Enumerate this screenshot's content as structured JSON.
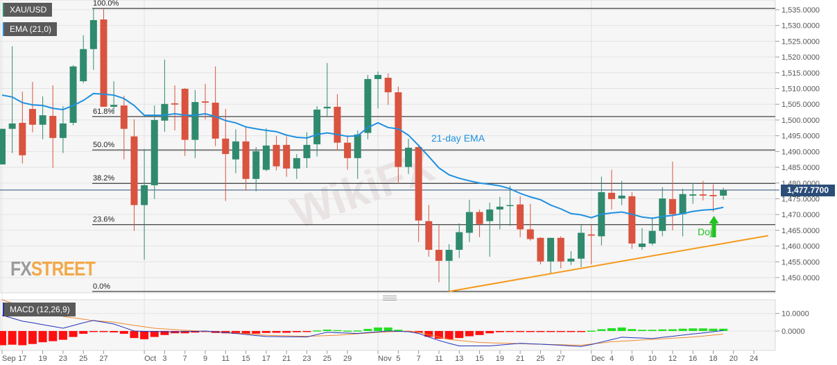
{
  "legend": {
    "symbol": "XAU/USD",
    "ema": "EMA (21,0)",
    "macd": "MACD (12,26,9)"
  },
  "logo": {
    "fx": "FX",
    "street": "STREET"
  },
  "watermark": "WikiFX",
  "colors": {
    "up": "#2f8a6e",
    "down": "#d9533f",
    "ema": "#1e90e0",
    "trend": "#f59a1b",
    "price_tag": "#2b4d78",
    "macd_line": "#2233bb",
    "signal_line": "#f08a30",
    "hist_pos": "#22e022",
    "hist_neg": "#ff1010",
    "doji": "#22c322"
  },
  "chart_data": [
    {
      "type": "candlestick",
      "title": "XAU/USD",
      "ylim": [
        1445,
        1537
      ],
      "yticks": [
        "1,535.0000",
        "1,530.0000",
        "1,525.0000",
        "1,520.0000",
        "1,515.0000",
        "1,510.0000",
        "1,505.0000",
        "1,500.0000",
        "1,495.0000",
        "1,490.0000",
        "1,485.0000",
        "1,480.0000",
        "1,475.0000",
        "1,470.0000",
        "1,465.0000",
        "1,460.0000",
        "1,455.0000",
        "1,450.0000"
      ],
      "ytick_values": [
        1535,
        1530,
        1525,
        1520,
        1515,
        1510,
        1505,
        1500,
        1495,
        1490,
        1485,
        1480,
        1475,
        1470,
        1465,
        1460,
        1455,
        1450
      ],
      "xticks": [
        {
          "label": "Sep",
          "candle": 0
        },
        {
          "label": "17",
          "candle": 2
        },
        {
          "label": "19",
          "candle": 4
        },
        {
          "label": "23",
          "candle": 6
        },
        {
          "label": "25",
          "candle": 8
        },
        {
          "label": "27",
          "candle": 10
        },
        {
          "label": "Oct",
          "candle": 14
        },
        {
          "label": "3",
          "candle": 16
        },
        {
          "label": "7",
          "candle": 18
        },
        {
          "label": "9",
          "candle": 20
        },
        {
          "label": "11",
          "candle": 22
        },
        {
          "label": "15",
          "candle": 24
        },
        {
          "label": "17",
          "candle": 26
        },
        {
          "label": "21",
          "candle": 28
        },
        {
          "label": "23",
          "candle": 30
        },
        {
          "label": "25",
          "candle": 32
        },
        {
          "label": "29",
          "candle": 34
        },
        {
          "label": "Nov",
          "candle": 37
        },
        {
          "label": "5",
          "candle": 39
        },
        {
          "label": "7",
          "candle": 41
        },
        {
          "label": "11",
          "candle": 43
        },
        {
          "label": "13",
          "candle": 45
        },
        {
          "label": "15",
          "candle": 47
        },
        {
          "label": "19",
          "candle": 49
        },
        {
          "label": "21",
          "candle": 51
        },
        {
          "label": "25",
          "candle": 53
        },
        {
          "label": "27",
          "candle": 55
        },
        {
          "label": "Dec",
          "candle": 58
        },
        {
          "label": "4",
          "candle": 60
        },
        {
          "label": "6",
          "candle": 62
        },
        {
          "label": "10",
          "candle": 64
        },
        {
          "label": "12",
          "candle": 66
        },
        {
          "label": "16",
          "candle": 68
        },
        {
          "label": "18",
          "candle": 70
        },
        {
          "label": "20",
          "candle": 72
        },
        {
          "label": "24",
          "candle": 74
        }
      ],
      "ohlc": [
        [
          1485.9,
          1497.2,
          1485.9,
          1497.2
        ],
        [
          1497.2,
          1523.4,
          1489.5,
          1498.9
        ],
        [
          1499.1,
          1509.0,
          1486.2,
          1488.8
        ],
        [
          1503.5,
          1512.1,
          1496.1,
          1498.5
        ],
        [
          1498.5,
          1507.5,
          1493.9,
          1501.5
        ],
        [
          1501.3,
          1511.0,
          1484.8,
          1494.3
        ],
        [
          1494.3,
          1504.4,
          1489.5,
          1498.9
        ],
        [
          1499.1,
          1517.4,
          1498.3,
          1517.0
        ],
        [
          1512.3,
          1526.9,
          1511.7,
          1522.5
        ],
        [
          1522.5,
          1535.4,
          1515.9,
          1531.7
        ],
        [
          1531.9,
          1535.2,
          1504.2,
          1504.2
        ],
        [
          1504.2,
          1512.3,
          1502.4,
          1504.8
        ],
        [
          1504.6,
          1507.7,
          1487.5,
          1497.2
        ],
        [
          1494.8,
          1500.2,
          1464.8,
          1473.0
        ],
        [
          1473.0,
          1490.8,
          1455.7,
          1479.3
        ],
        [
          1479.3,
          1504.6,
          1474.9,
          1500.0
        ],
        [
          1499.8,
          1519.2,
          1496.3,
          1505.1
        ],
        [
          1505.3,
          1511.0,
          1496.7,
          1504.9
        ],
        [
          1509.9,
          1510.1,
          1488.6,
          1493.7
        ],
        [
          1493.7,
          1509.5,
          1487.9,
          1505.7
        ],
        [
          1505.9,
          1511.5,
          1500.2,
          1505.5
        ],
        [
          1505.5,
          1517.0,
          1491.7,
          1494.1
        ],
        [
          1494.1,
          1503.5,
          1474.3,
          1489.2
        ],
        [
          1487.5,
          1497.0,
          1483.1,
          1493.2
        ],
        [
          1493.2,
          1497.8,
          1477.6,
          1481.3
        ],
        [
          1481.3,
          1491.4,
          1477.4,
          1490.1
        ],
        [
          1484.2,
          1497.4,
          1483.7,
          1491.9
        ],
        [
          1492.1,
          1495.0,
          1484.0,
          1485.3
        ],
        [
          1492.1,
          1494.8,
          1482.0,
          1484.6
        ],
        [
          1484.6,
          1489.2,
          1481.3,
          1487.9
        ],
        [
          1487.9,
          1496.1,
          1484.8,
          1492.1
        ],
        [
          1492.3,
          1504.4,
          1488.4,
          1503.3
        ],
        [
          1503.7,
          1518.1,
          1501.1,
          1504.2
        ],
        [
          1504.2,
          1508.2,
          1490.3,
          1492.8
        ],
        [
          1492.8,
          1495.2,
          1484.2,
          1487.9
        ],
        [
          1487.9,
          1496.7,
          1481.3,
          1495.4
        ],
        [
          1495.9,
          1514.3,
          1493.9,
          1513.0
        ],
        [
          1513.0,
          1515.4,
          1503.7,
          1514.3
        ],
        [
          1513.4,
          1514.8,
          1504.8,
          1508.8
        ],
        [
          1508.8,
          1510.6,
          1479.8,
          1485.1
        ],
        [
          1485.1,
          1494.1,
          1482.9,
          1491.2
        ],
        [
          1491.4,
          1492.1,
          1461.3,
          1468.1
        ],
        [
          1467.9,
          1473.0,
          1456.6,
          1458.8
        ],
        [
          1458.8,
          1466.6,
          1448.5,
          1455.3
        ],
        [
          1455.3,
          1460.6,
          1445.6,
          1458.8
        ],
        [
          1458.8,
          1467.2,
          1456.2,
          1464.4
        ],
        [
          1464.2,
          1474.7,
          1461.3,
          1470.8
        ],
        [
          1470.8,
          1471.6,
          1462.8,
          1467.0
        ],
        [
          1467.9,
          1473.8,
          1456.6,
          1471.6
        ],
        [
          1471.6,
          1475.6,
          1465.3,
          1472.5
        ],
        [
          1472.8,
          1479.1,
          1466.4,
          1473.0
        ],
        [
          1473.2,
          1475.8,
          1462.8,
          1465.3
        ],
        [
          1465.3,
          1473.4,
          1461.7,
          1462.2
        ],
        [
          1462.6,
          1462.8,
          1454.2,
          1455.1
        ],
        [
          1455.1,
          1462.6,
          1451.1,
          1462.6
        ],
        [
          1462.6,
          1463.1,
          1452.9,
          1455.1
        ],
        [
          1455.1,
          1458.4,
          1454.0,
          1456.0
        ],
        [
          1456.0,
          1466.6,
          1453.3,
          1464.2
        ],
        [
          1463.7,
          1466.6,
          1454.2,
          1463.3
        ],
        [
          1463.1,
          1482.0,
          1460.2,
          1477.1
        ],
        [
          1476.9,
          1484.2,
          1471.6,
          1474.9
        ],
        [
          1475.1,
          1480.7,
          1473.0,
          1476.0
        ],
        [
          1475.8,
          1477.1,
          1459.1,
          1460.8
        ],
        [
          1459.7,
          1465.7,
          1458.8,
          1460.8
        ],
        [
          1460.8,
          1469.2,
          1460.2,
          1464.8
        ],
        [
          1464.8,
          1478.7,
          1463.1,
          1475.1
        ],
        [
          1474.9,
          1486.8,
          1465.0,
          1470.1
        ],
        [
          1470.1,
          1478.2,
          1463.1,
          1476.5
        ],
        [
          1476.0,
          1480.0,
          1473.4,
          1476.4
        ],
        [
          1476.4,
          1480.7,
          1474.5,
          1476.0
        ],
        [
          1476.2,
          1479.6,
          1470.8,
          1475.8
        ],
        [
          1476.0,
          1478.5,
          1474.7,
          1477.77
        ]
      ],
      "ema21": [
        1507.9,
        1507.3,
        1505.5,
        1504.8,
        1504.6,
        1503.7,
        1503.3,
        1504.6,
        1506.2,
        1508.4,
        1508.2,
        1507.9,
        1506.8,
        1504.6,
        1501.5,
        1501.5,
        1501.5,
        1502.0,
        1501.5,
        1501.5,
        1502.0,
        1501.1,
        1499.8,
        1499.1,
        1497.8,
        1497.2,
        1496.7,
        1496.3,
        1495.2,
        1494.5,
        1494.3,
        1495.4,
        1495.9,
        1495.4,
        1494.8,
        1495.0,
        1497.6,
        1499.1,
        1497.6,
        1497.2,
        1495.2,
        1491.9,
        1488.4,
        1484.8,
        1482.6,
        1481.5,
        1480.7,
        1480.0,
        1479.6,
        1479.1,
        1478.2,
        1476.7,
        1475.6,
        1474.7,
        1473.0,
        1471.8,
        1470.3,
        1469.9,
        1469.0,
        1470.1,
        1470.5,
        1470.8,
        1470.1,
        1469.2,
        1468.8,
        1469.4,
        1469.7,
        1470.3,
        1471.0,
        1471.4,
        1471.6,
        1472.3
      ],
      "fibonacci": [
        {
          "label": "100.0%",
          "value": 1535.4
        },
        {
          "label": "61.8%",
          "value": 1501.1
        },
        {
          "label": "50.0%",
          "value": 1490.5
        },
        {
          "label": "38.2%",
          "value": 1479.9
        },
        {
          "label": "23.6%",
          "value": 1466.8
        },
        {
          "label": "0.0%",
          "value": 1445.6
        }
      ],
      "trendline": {
        "from": {
          "candle": 44,
          "value": 1445.6
        },
        "to": {
          "candle": 75.4,
          "value": 1463.3
        }
      },
      "last_price": 1477.77,
      "last_price_label": "1,477.7700",
      "annotations": {
        "ema_label": "21-day EMA",
        "doji_label": "Doji",
        "doji_candle": 70
      }
    },
    {
      "type": "macd",
      "title": "MACD (12,26,9)",
      "yticks": [
        "10.0000",
        "0.0000"
      ],
      "ytick_values": [
        10,
        0
      ],
      "histogram": [
        -8.1,
        -7.8,
        -8.1,
        -7.4,
        -6.4,
        -5.8,
        -5.0,
        -3.4,
        -1.6,
        -0.3,
        -0.6,
        -0.8,
        -1.6,
        -4.0,
        -4.7,
        -3.4,
        -2.3,
        -1.3,
        -1.3,
        -0.9,
        -0.5,
        -1.1,
        -1.3,
        -1.6,
        -1.6,
        -1.5,
        -1.1,
        -1.0,
        -1.0,
        -0.7,
        -0.5,
        0.3,
        0.8,
        0.5,
        0.2,
        0.3,
        1.2,
        2.0,
        2.0,
        0.7,
        -0.3,
        -1.0,
        -3.3,
        -4.4,
        -4.7,
        -4.0,
        -3.0,
        -2.3,
        -1.3,
        -0.7,
        -0.4,
        -0.4,
        -0.6,
        -0.6,
        -0.5,
        -0.5,
        -0.4,
        -0.1,
        0.2,
        1.0,
        1.6,
        2.0,
        1.1,
        0.7,
        0.7,
        0.9,
        1.0,
        1.3,
        1.5,
        1.5,
        1.3,
        1.3
      ],
      "macd": [
        9,
        7.3,
        5.6,
        4.7,
        3.6,
        2.6,
        1.6,
        3.1,
        4.7,
        6,
        5,
        4,
        2,
        0,
        -0.2,
        -0.3,
        -0.4,
        -0.5,
        -0.3,
        -0.2,
        0,
        -0.5,
        -0.9,
        -1.4,
        -2,
        -2.6,
        -3.1,
        -3.2,
        -3.3,
        -3.3,
        -3.4,
        -2,
        -0.7,
        -1,
        -1.2,
        -1.4,
        -0.9,
        -0.5,
        0,
        -0.2,
        -0.4,
        -1.4,
        -3.4,
        -5.4,
        -7,
        -8.5,
        -8.5,
        -8.5,
        -8.5,
        -8,
        -7.5,
        -7,
        -7.3,
        -7.5,
        -7.8,
        -8.1,
        -8.5,
        -8.8,
        -7.7,
        -6.3,
        -4.9,
        -3.5,
        -3.8,
        -4,
        -4.3,
        -3.6,
        -3,
        -2.3,
        -1.7,
        -1.1,
        -0.4,
        0.3
      ],
      "signal": [
        17.8,
        15.8,
        13.9,
        11.9,
        10.7,
        9.5,
        8.3,
        7.5,
        6.7,
        5.9,
        5.5,
        5.1,
        4.1,
        3.2,
        2.4,
        1.6,
        1.2,
        0.8,
        0.4,
        0.1,
        -0.2,
        -0.5,
        -0.8,
        -1.2,
        -1.6,
        -2,
        -2.4,
        -2.6,
        -2.7,
        -2.9,
        -3,
        -2.8,
        -2.6,
        -2.4,
        -2,
        -1.6,
        -1.2,
        -0.8,
        -0.5,
        -0.3,
        0,
        -0.7,
        -2.1,
        -3.4,
        -4.8,
        -5.4,
        -6,
        -6.5,
        -6.7,
        -6.9,
        -7,
        -7.2,
        -7.4,
        -7.5,
        -7.7,
        -7.8,
        -8,
        -8.1,
        -7.4,
        -6.8,
        -6.1,
        -5.8,
        -5.5,
        -5.1,
        -4.8,
        -4.5,
        -4.1,
        -3.8,
        -3.4,
        -2.9,
        -2.3,
        -1.8
      ]
    }
  ]
}
